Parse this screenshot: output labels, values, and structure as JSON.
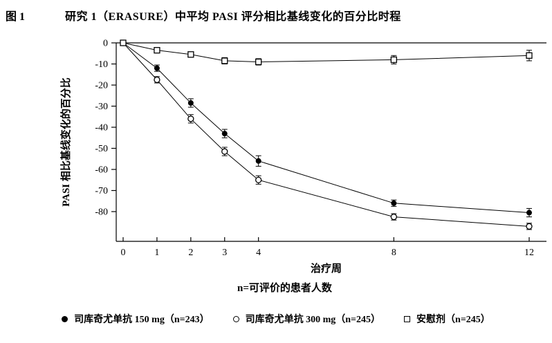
{
  "figure": {
    "label": "图 1",
    "title": "研究 1（ERASURE）中平均 PASI 评分相比基线变化的百分比时程"
  },
  "chart_data": {
    "type": "line",
    "title": "研究 1（ERASURE）中平均 PASI 评分相比基线变化的百分比时程",
    "xlabel": "治疗周",
    "ylabel": "PASI 相比基线变化的百分比",
    "footnote": "n=可评价的患者人数",
    "x": [
      0,
      1,
      2,
      3,
      4,
      8,
      12
    ],
    "xticks": [
      0,
      1,
      2,
      3,
      4,
      8,
      12
    ],
    "yticks": [
      0,
      -10,
      -20,
      -30,
      -40,
      -50,
      -60,
      -70,
      -80
    ],
    "xlim": [
      0,
      12
    ],
    "ylim": [
      -90,
      0
    ],
    "grid": false,
    "legend_position": "bottom",
    "series": [
      {
        "name": "司库奇尤单抗  150 mg（n=243）",
        "marker": "filled-circle",
        "values": [
          0,
          -12,
          -28.5,
          -43,
          -56,
          -76,
          -80.5
        ],
        "errors": [
          0,
          1.5,
          2,
          2,
          2.5,
          1.5,
          2
        ]
      },
      {
        "name": "司库奇尤单抗  300 mg（n=245）",
        "marker": "open-circle",
        "values": [
          0,
          -17.5,
          -36,
          -51.5,
          -65,
          -82.5,
          -87
        ],
        "errors": [
          0,
          1.5,
          2,
          2,
          2,
          1.5,
          1.5
        ]
      },
      {
        "name": "安慰剂（n=245）",
        "marker": "open-square",
        "values": [
          0,
          -3.5,
          -5.5,
          -8.5,
          -9,
          -8,
          -6
        ],
        "errors": [
          0,
          1,
          1,
          1.5,
          1.5,
          2,
          2.5
        ]
      }
    ],
    "colors": {
      "line": "#000000",
      "background": "#ffffff"
    }
  }
}
